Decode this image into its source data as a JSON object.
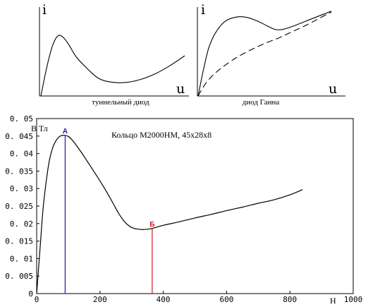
{
  "chart_data": [
    {
      "type": "line",
      "xlabel": "u",
      "ylabel": "i",
      "caption": "туннельный диод",
      "series": [
        {
          "x": [
            0.0,
            0.04,
            0.08,
            0.12,
            0.16,
            0.2,
            0.24,
            0.3,
            0.4,
            0.5,
            0.6,
            0.7,
            0.8,
            0.9,
            1.0
          ],
          "y": [
            0.0,
            0.35,
            0.62,
            0.75,
            0.72,
            0.62,
            0.5,
            0.38,
            0.22,
            0.17,
            0.17,
            0.21,
            0.28,
            0.38,
            0.5
          ]
        }
      ]
    },
    {
      "type": "line",
      "xlabel": "u",
      "ylabel": "i",
      "caption": "диод Ганна",
      "series": [
        {
          "x": [
            0.0,
            0.04,
            0.08,
            0.13,
            0.2,
            0.28,
            0.36,
            0.44,
            0.52,
            0.58,
            0.63,
            0.7,
            0.8,
            0.9,
            1.0
          ],
          "y": [
            0.0,
            0.3,
            0.55,
            0.72,
            0.85,
            0.9,
            0.9,
            0.86,
            0.8,
            0.76,
            0.76,
            0.79,
            0.85,
            0.91,
            0.97
          ]
        },
        {
          "x": [
            0.0,
            0.03,
            0.06,
            0.1,
            0.15,
            0.22,
            0.3,
            0.4,
            0.5,
            0.6,
            0.7,
            0.8,
            0.9,
            1.0
          ],
          "y": [
            0.0,
            0.08,
            0.15,
            0.22,
            0.29,
            0.37,
            0.45,
            0.53,
            0.6,
            0.66,
            0.73,
            0.8,
            0.88,
            0.96
          ]
        }
      ]
    },
    {
      "type": "line",
      "title": "Кольцо М2000НМ, 45х28х8",
      "ylabel": "В Тл",
      "xlabel": "Н",
      "xlim": [
        0,
        1000
      ],
      "ylim": [
        0,
        0.05
      ],
      "xticks": [
        "0",
        "200",
        "400",
        "600",
        "800",
        "1000"
      ],
      "yticks": [
        "0",
        "0. 005",
        "0. 01",
        "0. 015",
        "0. 02",
        "0. 025",
        "0. 03",
        "0. 035",
        "0. 04",
        "0. 045",
        "0. 05"
      ],
      "series": [
        {
          "x": [
            0,
            10,
            20,
            30,
            40,
            50,
            60,
            70,
            80,
            90,
            100,
            110,
            120,
            140,
            160,
            180,
            200,
            220,
            240,
            260,
            280,
            300,
            320,
            340,
            360,
            380,
            400,
            450,
            500,
            550,
            600,
            650,
            700,
            750,
            800,
            840
          ],
          "y": [
            0.0,
            0.012,
            0.024,
            0.032,
            0.038,
            0.0415,
            0.0435,
            0.0447,
            0.0452,
            0.0452,
            0.0449,
            0.0441,
            0.043,
            0.0405,
            0.0378,
            0.035,
            0.0322,
            0.0292,
            0.026,
            0.0228,
            0.0203,
            0.0189,
            0.0184,
            0.0183,
            0.0185,
            0.019,
            0.0195,
            0.0205,
            0.0216,
            0.0226,
            0.0237,
            0.0247,
            0.0258,
            0.0268,
            0.0282,
            0.0297
          ]
        }
      ],
      "points": [
        {
          "label": "А",
          "x": 90,
          "y": 0.0452,
          "color": "#1f1f9e"
        },
        {
          "label": "Б",
          "x": 365,
          "y": 0.0185,
          "color": "#d11818"
        }
      ]
    }
  ]
}
